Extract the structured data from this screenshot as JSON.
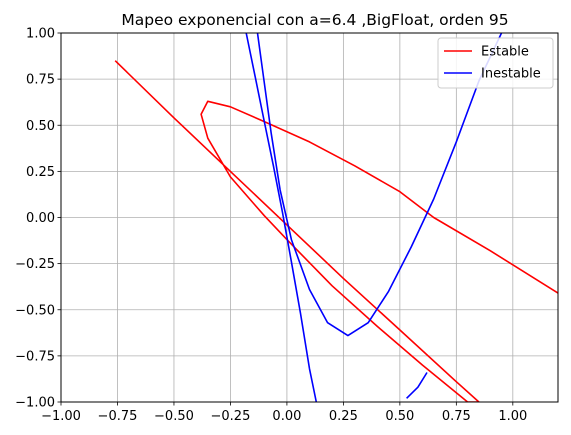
{
  "chart_data": {
    "type": "line",
    "title": "Mapeo exponencial con a=6.4 ,BigFloat, orden 95",
    "xlabel": "",
    "ylabel": "",
    "xlim": [
      -1.0,
      1.2
    ],
    "ylim": [
      -1.0,
      1.0
    ],
    "grid": true,
    "legend_position": "top-right",
    "x_ticks": [
      -1.0,
      -0.75,
      -0.5,
      -0.25,
      0.0,
      0.25,
      0.5,
      0.75,
      1.0
    ],
    "x_tick_labels": [
      "−1.00",
      "−0.75",
      "−0.50",
      "−0.25",
      "0.00",
      "0.25",
      "0.50",
      "0.75",
      "1.00"
    ],
    "y_ticks": [
      1.0,
      0.75,
      0.5,
      0.25,
      0.0,
      -0.25,
      -0.5,
      -0.75,
      -1.0
    ],
    "y_tick_labels": [
      "1.00",
      "0.75",
      "0.50",
      "0.25",
      "0.00",
      "−0.25",
      "−0.50",
      "−0.75",
      "−1.00"
    ],
    "series": [
      {
        "name": "Estable",
        "color": "#ff0000",
        "x": [
          -0.76,
          -0.5,
          -0.25,
          0.0,
          0.25,
          0.5,
          0.75,
          0.85,
          0.8,
          0.6,
          0.4,
          0.2,
          0.0,
          -0.1,
          -0.25,
          -0.35,
          -0.38,
          -0.35,
          -0.25,
          -0.1,
          0.1,
          0.3,
          0.5,
          0.65,
          0.9,
          1.2
        ],
        "y": [
          0.85,
          0.54,
          0.25,
          -0.04,
          -0.33,
          -0.61,
          -0.89,
          -1.0,
          -1.0,
          -0.8,
          -0.59,
          -0.37,
          -0.12,
          0.01,
          0.22,
          0.43,
          0.56,
          0.63,
          0.6,
          0.52,
          0.41,
          0.28,
          0.14,
          0.0,
          -0.18,
          -0.41
        ]
      },
      {
        "name": "Inestable",
        "color": "#0000ff",
        "x": [
          -0.18,
          -0.14,
          -0.1,
          -0.06,
          -0.02,
          0.02,
          0.06,
          0.1,
          0.13
        ],
        "y": [
          1.0,
          0.76,
          0.52,
          0.28,
          0.03,
          -0.24,
          -0.52,
          -0.82,
          -1.0
        ],
        "x2": [
          -0.13,
          -0.1,
          -0.07,
          -0.03,
          0.02,
          0.1,
          0.18,
          0.27,
          0.36,
          0.45,
          0.55,
          0.65,
          0.75,
          0.85,
          0.95
        ],
        "y2": [
          1.0,
          0.73,
          0.46,
          0.15,
          -0.12,
          -0.39,
          -0.57,
          -0.64,
          -0.57,
          -0.4,
          -0.16,
          0.1,
          0.41,
          0.74,
          1.0
        ],
        "x3": [
          0.53,
          0.58,
          0.62
        ],
        "y3": [
          -0.98,
          -0.92,
          -0.84
        ]
      }
    ]
  }
}
